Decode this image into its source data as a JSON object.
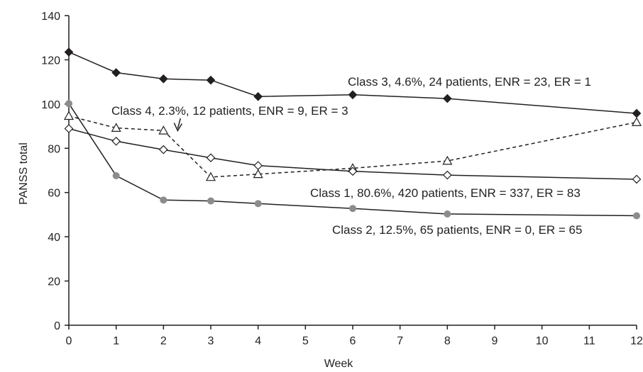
{
  "chart_data": {
    "type": "line",
    "title": "",
    "xlabel": "Week",
    "ylabel": "PANSS total",
    "xlim": [
      0,
      12
    ],
    "ylim": [
      0,
      140
    ],
    "x_ticks": [
      0,
      1,
      2,
      3,
      4,
      5,
      6,
      7,
      8,
      9,
      10,
      11,
      12
    ],
    "y_ticks": [
      0,
      20,
      40,
      60,
      80,
      100,
      120,
      140
    ],
    "grid": false,
    "legend": "none",
    "series": [
      {
        "name": "Class 3, 4.6%, 24 patients, ENR = 23, ER = 1",
        "marker": "filled-diamond",
        "line_style": "solid",
        "color": "#231f20",
        "points": [
          [
            0,
            123.5
          ],
          [
            1,
            114.2
          ],
          [
            2,
            111.4
          ],
          [
            3,
            110.8
          ],
          [
            4,
            103.4
          ],
          [
            6,
            104.2
          ],
          [
            8,
            102.5
          ],
          [
            12,
            95.8
          ]
        ]
      },
      {
        "name": "Class 4, 2.3%, 12 patients, ENR = 9, ER = 3",
        "marker": "open-triangle",
        "line_style": "dashed",
        "color": "#231f20",
        "points": [
          [
            0,
            94.6
          ],
          [
            1,
            89.2
          ],
          [
            2,
            88.0
          ],
          [
            3,
            67.0
          ],
          [
            4,
            68.3
          ],
          [
            6,
            71.0
          ],
          [
            8,
            74.3
          ],
          [
            12,
            91.8
          ]
        ]
      },
      {
        "name": "Class 1, 80.6%, 420 patients, ENR = 337, ER = 83",
        "marker": "open-diamond",
        "line_style": "solid",
        "color": "#231f20",
        "points": [
          [
            0,
            88.9
          ],
          [
            1,
            83.2
          ],
          [
            2,
            79.4
          ],
          [
            3,
            75.7
          ],
          [
            4,
            72.2
          ],
          [
            6,
            69.6
          ],
          [
            8,
            67.9
          ],
          [
            12,
            66.0
          ]
        ]
      },
      {
        "name": "Class 2, 12.5%, 65 patients, ENR = 0, ER = 65",
        "marker": "filled-circle",
        "marker_color": "#8c8c8c",
        "line_style": "solid",
        "color": "#231f20",
        "points": [
          [
            0,
            100.2
          ],
          [
            1,
            67.6
          ],
          [
            2,
            56.6
          ],
          [
            3,
            56.2
          ],
          [
            4,
            55.0
          ],
          [
            6,
            52.8
          ],
          [
            8,
            50.3
          ],
          [
            12,
            49.5
          ]
        ]
      }
    ],
    "annotations": [
      {
        "text": "Class 3, 4.6%, 24 patients, ENR = 23, ER = 1",
        "series": 0
      },
      {
        "text": "Class 4, 2.3%, 12 patients, ENR = 9, ER = 3",
        "series": 1,
        "arrow_to": [
          2.3,
          87
        ]
      },
      {
        "text": "Class 1, 80.6%, 420 patients, ENR = 337, ER = 83",
        "series": 2
      },
      {
        "text": "Class 2, 12.5%, 65 patients, ENR = 0, ER = 65",
        "series": 3
      }
    ]
  }
}
